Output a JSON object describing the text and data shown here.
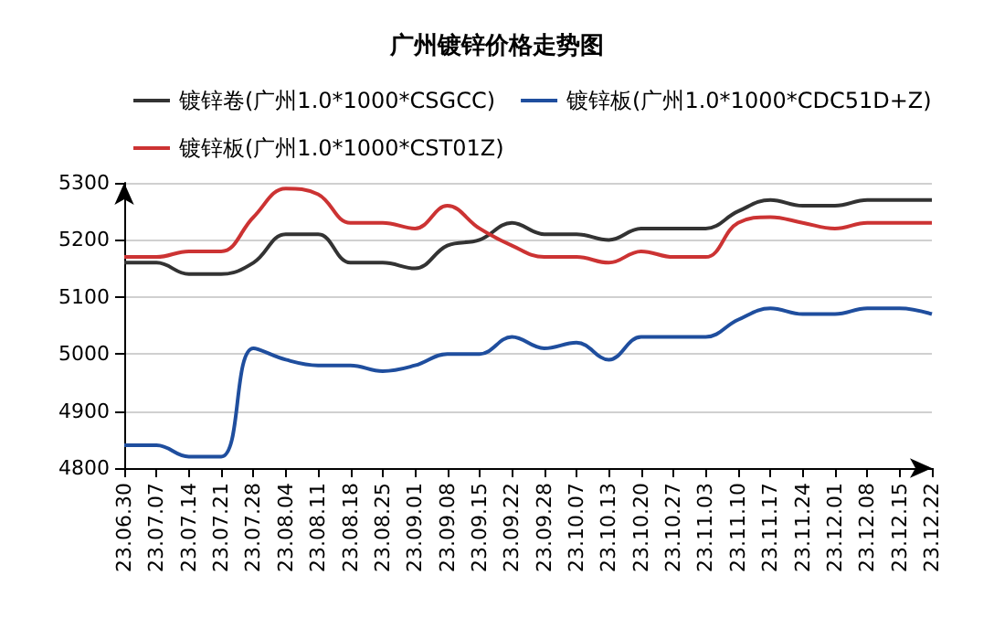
{
  "chart_data": {
    "type": "line",
    "title": "广州镀锌价格走势图",
    "categories": [
      "23.06.30",
      "23.07.07",
      "23.07.14",
      "23.07.21",
      "23.07.28",
      "23.08.04",
      "23.08.11",
      "23.08.18",
      "23.08.25",
      "23.09.01",
      "23.09.08",
      "23.09.15",
      "23.09.22",
      "23.09.28",
      "23.10.07",
      "23.10.13",
      "23.10.20",
      "23.10.27",
      "23.11.03",
      "23.11.10",
      "23.11.17",
      "23.11.24",
      "23.12.01",
      "23.12.08",
      "23.12.15",
      "23.12.22"
    ],
    "series": [
      {
        "name": "镀锌卷(广州1.0*1000*CSGCC)",
        "color": "#333333",
        "values": [
          5160,
          5160,
          5140,
          5140,
          5160,
          5210,
          5210,
          5160,
          5160,
          5150,
          5190,
          5200,
          5230,
          5210,
          5210,
          5200,
          5220,
          5220,
          5220,
          5250,
          5270,
          5260,
          5260,
          5270,
          5270,
          5270
        ]
      },
      {
        "name": "镀锌板(广州1.0*1000*CDC51D+Z)",
        "color": "#1f4e9e",
        "values": [
          4840,
          4840,
          4820,
          4820,
          5010,
          4990,
          4980,
          4980,
          4970,
          4980,
          5000,
          5000,
          5030,
          5010,
          5020,
          4990,
          5030,
          5030,
          5030,
          5060,
          5080,
          5070,
          5070,
          5080,
          5080,
          5070
        ]
      },
      {
        "name": "镀锌板(广州1.0*1000*CST01Z)",
        "color": "#cc3333",
        "values": [
          5170,
          5170,
          5180,
          5180,
          5240,
          5290,
          5280,
          5230,
          5230,
          5220,
          5260,
          5220,
          5190,
          5170,
          5170,
          5160,
          5180,
          5170,
          5170,
          5230,
          5240,
          5230,
          5220,
          5230,
          5230,
          5230
        ]
      }
    ],
    "ylim": [
      4800,
      5300
    ],
    "yticks": [
      4800,
      4900,
      5000,
      5100,
      5200,
      5300
    ],
    "grid": "y",
    "legend": "top",
    "marker": "none",
    "line_style": "solid"
  }
}
